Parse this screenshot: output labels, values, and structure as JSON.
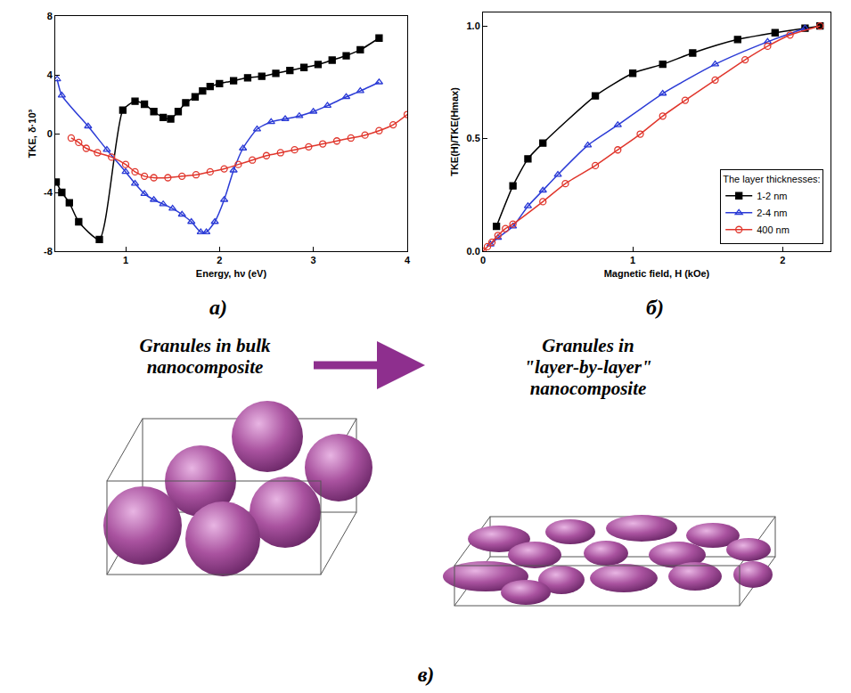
{
  "chart_data": [
    {
      "type": "line",
      "panel_label": "a)",
      "x_label": "Energy, hν (eV)",
      "y_label": "TKE, δ·10³",
      "xlim": [
        0.25,
        4
      ],
      "xticks": [
        1,
        2,
        3,
        4
      ],
      "ylim": [
        -8,
        8
      ],
      "yticks": [
        -8,
        -4,
        0,
        4,
        8
      ],
      "series": [
        {
          "color": "#000000",
          "marker": "square",
          "line_style": "solid",
          "x": [
            0.26,
            0.32,
            0.4,
            0.5,
            0.72,
            0.97,
            1.1,
            1.2,
            1.3,
            1.4,
            1.48,
            1.56,
            1.64,
            1.74,
            1.82,
            1.9,
            2.0,
            2.15,
            2.3,
            2.45,
            2.6,
            2.75,
            2.9,
            3.05,
            3.2,
            3.35,
            3.5,
            3.7
          ],
          "values": [
            -3.3,
            -4.0,
            -4.7,
            -6.0,
            -7.2,
            1.6,
            2.2,
            2.0,
            1.5,
            1.1,
            1.0,
            1.5,
            2.1,
            2.5,
            2.9,
            3.2,
            3.4,
            3.6,
            3.8,
            3.9,
            4.1,
            4.3,
            4.5,
            4.7,
            5.0,
            5.3,
            5.7,
            6.5
          ]
        },
        {
          "color": "#2b3bd6",
          "marker": "triangle-up-open",
          "line_style": "solid",
          "x": [
            0.27,
            0.32,
            0.6,
            0.8,
            1.0,
            1.1,
            1.2,
            1.3,
            1.4,
            1.5,
            1.6,
            1.7,
            1.8,
            1.86,
            1.95,
            2.05,
            2.15,
            2.25,
            2.4,
            2.55,
            2.7,
            2.85,
            3.0,
            3.15,
            3.35,
            3.5,
            3.7
          ],
          "values": [
            3.7,
            2.6,
            0.5,
            -1.1,
            -2.6,
            -3.4,
            -4.1,
            -4.5,
            -4.8,
            -5.1,
            -5.5,
            -6.0,
            -6.7,
            -6.7,
            -6.0,
            -4.5,
            -2.5,
            -1.0,
            0.3,
            0.8,
            1.0,
            1.2,
            1.5,
            1.9,
            2.5,
            2.9,
            3.5
          ]
        },
        {
          "color": "#e0362c",
          "marker": "circle-open",
          "line_style": "solid",
          "x": [
            0.42,
            0.5,
            0.58,
            0.7,
            0.85,
            1.0,
            1.1,
            1.2,
            1.3,
            1.45,
            1.6,
            1.75,
            1.9,
            2.05,
            2.2,
            2.35,
            2.5,
            2.65,
            2.8,
            2.95,
            3.1,
            3.25,
            3.4,
            3.55,
            3.7,
            3.85,
            4.0
          ],
          "values": [
            -0.3,
            -0.6,
            -1.0,
            -1.3,
            -1.6,
            -2.1,
            -2.6,
            -2.9,
            -3.0,
            -3.0,
            -2.9,
            -2.8,
            -2.6,
            -2.4,
            -2.1,
            -1.8,
            -1.5,
            -1.3,
            -1.1,
            -0.9,
            -0.7,
            -0.5,
            -0.3,
            -0.1,
            0.2,
            0.6,
            1.3
          ]
        }
      ]
    },
    {
      "type": "line",
      "panel_label": "б)",
      "x_label": "Magnetic field, H (kOe)",
      "y_label": "TKE(H)/TKE(Hmax)",
      "xlim": [
        0,
        2.32
      ],
      "xticks": [
        0,
        1,
        2
      ],
      "ylim": [
        0,
        1.06
      ],
      "yticks": [
        {
          "value": 0,
          "label": "0.0"
        },
        0.5,
        {
          "value": 1,
          "label": "1.0"
        }
      ],
      "legend": "lower right",
      "legend_title": "The layer thicknesses:",
      "series": [
        {
          "name": "1-2 nm",
          "color": "#000000",
          "marker": "square",
          "line_style": "solid",
          "x": [
            0.09,
            0.2,
            0.3,
            0.4,
            0.75,
            1.0,
            1.2,
            1.4,
            1.7,
            1.95,
            2.15,
            2.25
          ],
          "values": [
            0.11,
            0.29,
            0.41,
            0.48,
            0.69,
            0.79,
            0.83,
            0.88,
            0.94,
            0.97,
            0.99,
            1.0
          ]
        },
        {
          "name": "2-4 nm",
          "color": "#2b3bd6",
          "marker": "triangle-up-open",
          "line_style": "solid",
          "x": [
            0.05,
            0.1,
            0.2,
            0.3,
            0.4,
            0.5,
            0.7,
            0.9,
            1.2,
            1.55,
            1.9,
            2.15
          ],
          "values": [
            0.03,
            0.06,
            0.11,
            0.2,
            0.27,
            0.34,
            0.47,
            0.56,
            0.7,
            0.83,
            0.93,
            0.99
          ]
        },
        {
          "name": "400 nm",
          "color": "#e0362c",
          "marker": "circle-open",
          "line_style": "solid",
          "x": [
            0.0,
            0.03,
            0.06,
            0.1,
            0.15,
            0.2,
            0.4,
            0.55,
            0.75,
            0.9,
            1.05,
            1.2,
            1.35,
            1.55,
            1.75,
            1.9,
            2.05,
            2.25
          ],
          "values": [
            0.0,
            0.02,
            0.04,
            0.07,
            0.1,
            0.12,
            0.22,
            0.3,
            0.38,
            0.45,
            0.52,
            0.6,
            0.67,
            0.76,
            0.85,
            0.91,
            0.96,
            1.0
          ]
        }
      ]
    }
  ],
  "diagram": {
    "left_title": "Granules in bulk nanocomposite",
    "right_title": "Granules in \"layer-by-layer\" nanocomposite",
    "panel_label": "в)"
  }
}
